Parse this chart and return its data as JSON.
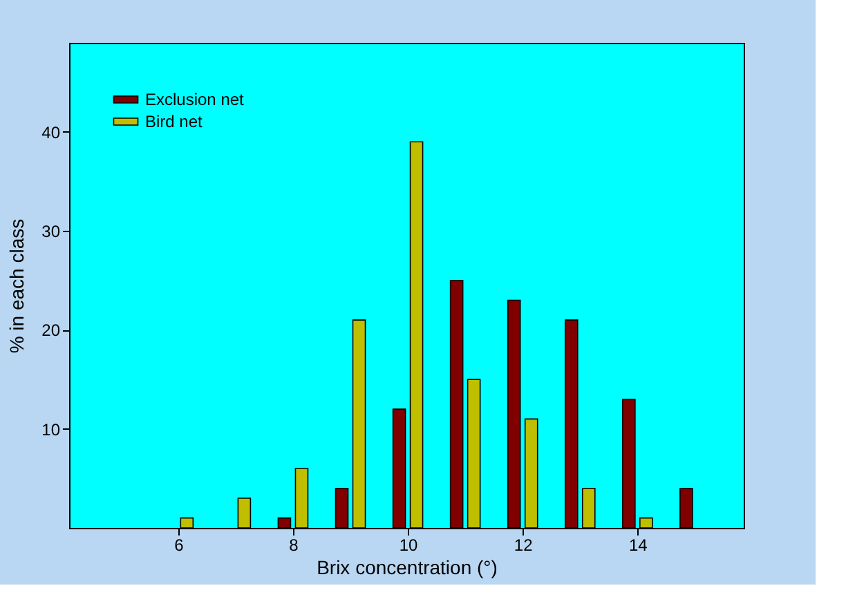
{
  "chart_data": {
    "type": "bar",
    "xlabel": "Brix concentration (°)",
    "ylabel": "% in each class",
    "x": [
      6,
      7,
      8,
      9,
      10,
      11,
      12,
      13,
      14,
      15
    ],
    "series": [
      {
        "name": "Exclusion net",
        "color": "#800000",
        "values": [
          null,
          null,
          1,
          4,
          12,
          25,
          23,
          21,
          13,
          4
        ]
      },
      {
        "name": "Bird net",
        "color": "#bfbf00",
        "values": [
          1,
          3,
          6,
          21,
          39,
          15,
          11,
          4,
          1,
          null
        ]
      }
    ],
    "xlim": [
      4.1,
      15.85
    ],
    "xticks": [
      6,
      8,
      10,
      12,
      14
    ],
    "ylim": [
      0,
      49
    ],
    "yticks": [
      10,
      20,
      30,
      40
    ],
    "grid": false,
    "legend": "top left"
  }
}
